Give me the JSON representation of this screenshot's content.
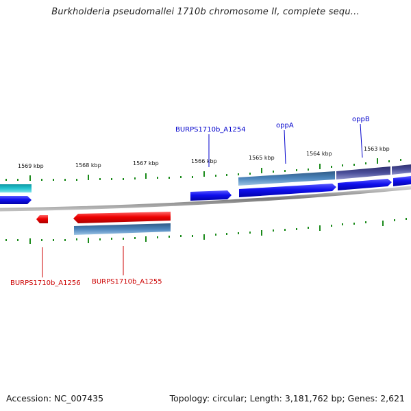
{
  "title": "Burkholderia pseudomallei 1710b chromosome II, complete sequ...",
  "footer": {
    "accession": "Accession: NC_007435",
    "topology": "Topology: circular; Length: 3,181,762 bp; Genes: 2,621"
  },
  "ruler": {
    "labels": [
      "1569 kbp",
      "1568 kbp",
      "1567 kbp",
      "1566 kbp",
      "1565 kbp",
      "1564 kbp",
      "1563 kbp"
    ]
  },
  "gene_labels": {
    "a1254": "BURPS1710b_A1254",
    "oppA": "oppA",
    "oppB": "oppB",
    "a1256": "BURPS1710b_A1256",
    "a1255": "BURPS1710b_A1255"
  },
  "colors": {
    "forward_strand": "#0000ee",
    "reverse_strand": "#ee0000",
    "feature_band": "#4a7fb0",
    "feature_band_dark": "#4b4f8f",
    "cyan_feature": "#19b8c2",
    "tick": "#1a8a1a",
    "backbone": "#8a8a8a"
  }
}
